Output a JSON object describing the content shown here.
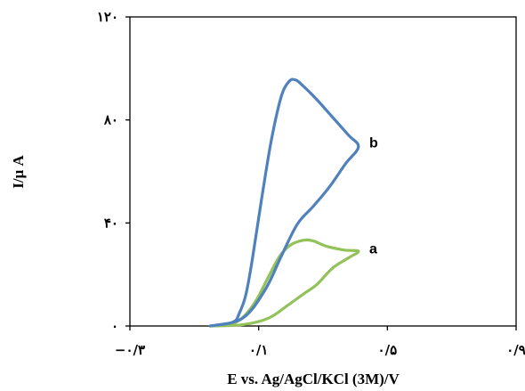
{
  "chart_data": {
    "type": "line",
    "title": "",
    "xlabel": "E vs. Ag/AgCl/KCl (3M)/V",
    "ylabel": "I/μ A",
    "xlim": [
      -0.3,
      0.9
    ],
    "ylim": [
      0,
      120
    ],
    "x_ticks": [
      {
        "value": -0.3,
        "label": "−۰/۳"
      },
      {
        "value": 0.1,
        "label": "۰/۱"
      },
      {
        "value": 0.5,
        "label": "۰/۵"
      },
      {
        "value": 0.9,
        "label": "۰/۹"
      }
    ],
    "y_ticks": [
      {
        "value": 0,
        "label": "۰"
      },
      {
        "value": 40,
        "label": "۴۰"
      },
      {
        "value": 80,
        "label": "۸۰"
      },
      {
        "value": 120,
        "label": "۱۲۰"
      }
    ],
    "grid": false,
    "legend": "none",
    "series": [
      {
        "name": "a",
        "color": "#93c15a",
        "points": [
          [
            -0.05,
            0
          ],
          [
            0.05,
            0.5
          ],
          [
            0.13,
            3
          ],
          [
            0.19,
            8
          ],
          [
            0.24,
            12.5
          ],
          [
            0.28,
            16
          ],
          [
            0.33,
            22.5
          ],
          [
            0.38,
            26.5
          ],
          [
            0.41,
            29
          ],
          [
            0.365,
            29.5
          ],
          [
            0.31,
            31
          ],
          [
            0.27,
            33
          ],
          [
            0.24,
            33.3
          ],
          [
            0.2,
            31.5
          ],
          [
            0.165,
            27
          ],
          [
            0.13,
            19
          ],
          [
            0.095,
            10.5
          ],
          [
            0.06,
            4.5
          ],
          [
            0.02,
            1
          ],
          [
            -0.05,
            0
          ]
        ]
      },
      {
        "name": "b",
        "color": "#4f81bd",
        "points": [
          [
            -0.05,
            0
          ],
          [
            0.05,
            3
          ],
          [
            0.12,
            14
          ],
          [
            0.17,
            27
          ],
          [
            0.22,
            39.5
          ],
          [
            0.27,
            46.5
          ],
          [
            0.32,
            54
          ],
          [
            0.37,
            63
          ],
          [
            0.41,
            69.5
          ],
          [
            0.38,
            74
          ],
          [
            0.33,
            81
          ],
          [
            0.28,
            88
          ],
          [
            0.24,
            93
          ],
          [
            0.215,
            95.5
          ],
          [
            0.195,
            95
          ],
          [
            0.17,
            89
          ],
          [
            0.14,
            72.5
          ],
          [
            0.11,
            50
          ],
          [
            0.08,
            25.5
          ],
          [
            0.06,
            12
          ],
          [
            0.04,
            5
          ],
          [
            0.02,
            1.5
          ],
          [
            -0.05,
            0
          ]
        ]
      }
    ],
    "curve_labels": [
      {
        "text": "a",
        "x": 0.43,
        "y": 30
      },
      {
        "text": "b",
        "x": 0.43,
        "y": 71
      }
    ]
  }
}
